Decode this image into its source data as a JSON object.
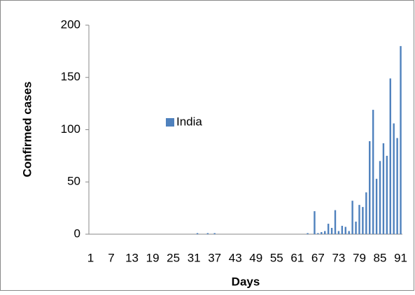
{
  "chart_data": {
    "type": "bar",
    "xlabel": "Days",
    "ylabel": "Confirmed cases",
    "categories": [
      "1",
      null,
      null,
      null,
      null,
      null,
      "7",
      null,
      null,
      null,
      null,
      null,
      "13",
      null,
      null,
      null,
      null,
      null,
      "19",
      null,
      null,
      null,
      null,
      null,
      "25",
      null,
      null,
      null,
      null,
      null,
      "31",
      null,
      null,
      null,
      null,
      null,
      "37",
      null,
      null,
      null,
      null,
      null,
      "43",
      null,
      null,
      null,
      null,
      null,
      "49",
      null,
      null,
      null,
      null,
      null,
      "55",
      null,
      null,
      null,
      null,
      null,
      "61",
      null,
      null,
      null,
      null,
      null,
      "67",
      null,
      null,
      null,
      null,
      null,
      "73",
      null,
      null,
      null,
      null,
      null,
      "79",
      null,
      null,
      null,
      null,
      null,
      "85",
      null,
      null,
      null,
      null,
      null,
      "91"
    ],
    "series": [
      {
        "name": "India",
        "color": "#4f81bd",
        "values": [
          0,
          0,
          0,
          0,
          0,
          0,
          0,
          0,
          0,
          0,
          0,
          0,
          0,
          0,
          0,
          0,
          0,
          0,
          0,
          0,
          0,
          0,
          0,
          0,
          0,
          0,
          0,
          0,
          0,
          0,
          0,
          1,
          0,
          0,
          1,
          0,
          1,
          0,
          0,
          0,
          0,
          0,
          0,
          0,
          0,
          0,
          0,
          0,
          0,
          0,
          0,
          0,
          0,
          0,
          0,
          0,
          0,
          0,
          0,
          0,
          0,
          0,
          0,
          1,
          0,
          22,
          1,
          2,
          3,
          10,
          6,
          23,
          3,
          8,
          7,
          3,
          32,
          12,
          28,
          26,
          40,
          89,
          119,
          53,
          70,
          87,
          75,
          149,
          106,
          92,
          180
        ]
      }
    ],
    "ylim": [
      0,
      200
    ],
    "yticks": [
      0,
      50,
      100,
      150,
      200
    ],
    "grid": false,
    "legend": "center"
  }
}
